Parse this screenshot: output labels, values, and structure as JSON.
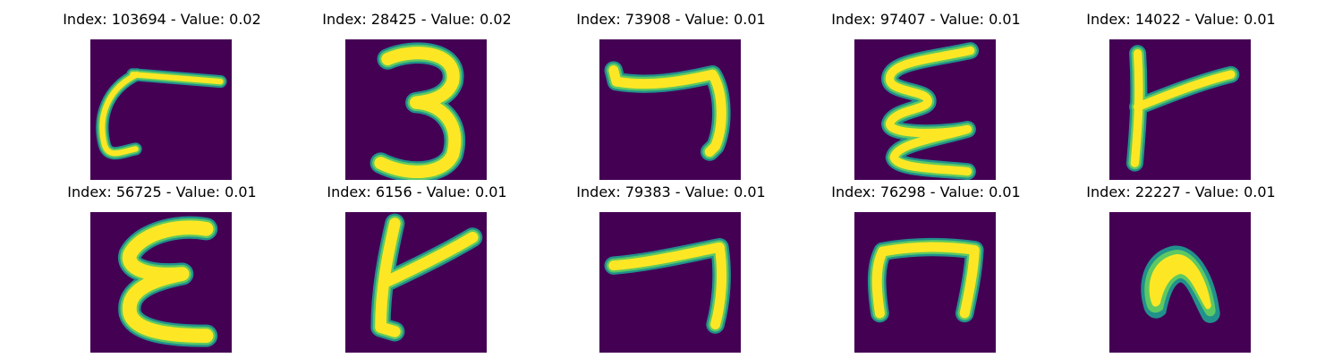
{
  "colors": {
    "background": "#440154",
    "stroke_edge": "#21918c",
    "stroke_mid": "#5ec962",
    "stroke_core": "#fde725"
  },
  "panels": [
    {
      "title": "Index: 103694 - Value: 0.02"
    },
    {
      "title": "Index: 28425 - Value: 0.02"
    },
    {
      "title": "Index: 73908 - Value: 0.01"
    },
    {
      "title": "Index: 97407 - Value: 0.01"
    },
    {
      "title": "Index: 14022 - Value: 0.01"
    },
    {
      "title": "Index: 56725 - Value: 0.01"
    },
    {
      "title": "Index: 6156 - Value: 0.01"
    },
    {
      "title": "Index: 79383 - Value: 0.01"
    },
    {
      "title": "Index: 76298 - Value: 0.01"
    },
    {
      "title": "Index: 22227 - Value: 0.01"
    }
  ]
}
